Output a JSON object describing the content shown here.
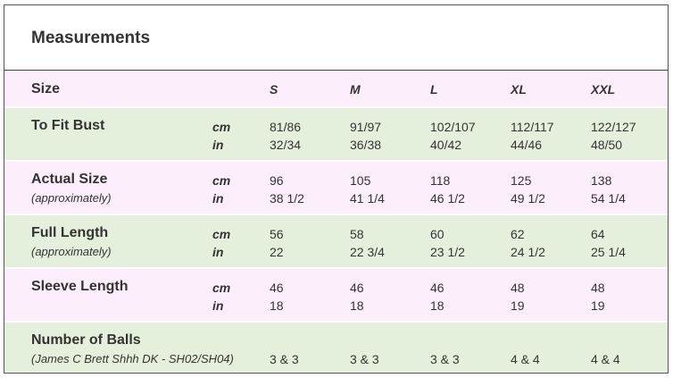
{
  "title": "Measurements",
  "table": {
    "header": {
      "label": "Size",
      "sizes": [
        "S",
        "M",
        "L",
        "XL",
        "XXL"
      ]
    },
    "rows": [
      {
        "label": "To Fit Bust",
        "units": [
          "cm",
          "in"
        ],
        "values": [
          [
            "81/86",
            "32/34"
          ],
          [
            "91/97",
            "36/38"
          ],
          [
            "102/107",
            "40/42"
          ],
          [
            "112/117",
            "44/46"
          ],
          [
            "122/127",
            "48/50"
          ]
        ]
      },
      {
        "label": "Actual Size",
        "sublabel": "(approximately)",
        "units": [
          "cm",
          "in"
        ],
        "values": [
          [
            "96",
            "38 1/2"
          ],
          [
            "105",
            "41 1/4"
          ],
          [
            "118",
            "46 1/2"
          ],
          [
            "125",
            "49 1/2"
          ],
          [
            "138",
            "54 1/4"
          ]
        ]
      },
      {
        "label": "Full Length",
        "sublabel": "(approximately)",
        "units": [
          "cm",
          "in"
        ],
        "values": [
          [
            "56",
            "22"
          ],
          [
            "58",
            "22 3/4"
          ],
          [
            "60",
            "23 1/2"
          ],
          [
            "62",
            "24 1/2"
          ],
          [
            "64",
            "25 1/4"
          ]
        ]
      },
      {
        "label": "Sleeve Length",
        "units": [
          "cm",
          "in"
        ],
        "values": [
          [
            "46",
            "18"
          ],
          [
            "46",
            "18"
          ],
          [
            "46",
            "18"
          ],
          [
            "48",
            "19"
          ],
          [
            "48",
            "19"
          ]
        ]
      },
      {
        "label": "Number of Balls",
        "sublabel": "(James C Brett Shhh DK - SH02/SH04)",
        "values": [
          [
            "3 & 3"
          ],
          [
            "3 & 3"
          ],
          [
            "3 & 3"
          ],
          [
            "4 & 4"
          ],
          [
            "4 & 4"
          ]
        ]
      }
    ]
  }
}
